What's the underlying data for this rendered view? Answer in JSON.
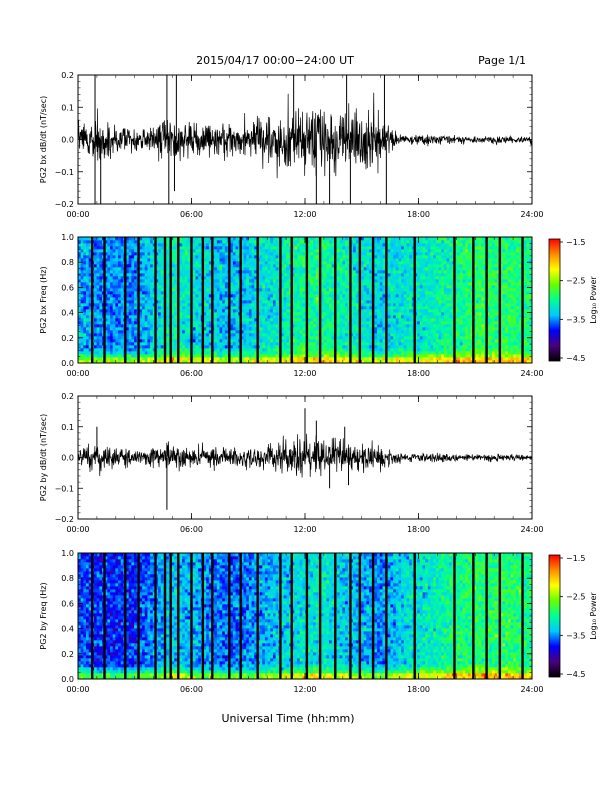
{
  "header": {
    "title": "2015/04/17  00:00−24:00 UT",
    "page": "Page 1/1"
  },
  "x_label": "Universal Time (hh:mm)",
  "x_ticks": [
    "00:00",
    "06:00",
    "12:00",
    "18:00",
    "24:00"
  ],
  "chart_data": [
    {
      "type": "line",
      "ylabel": "PG2 bx dB/dt (nT/sec)",
      "xlim": [
        0,
        24
      ],
      "ylim": [
        -0.2,
        0.2
      ],
      "yticks": [
        "0.2",
        "0.1",
        "0.0",
        "−0.1",
        "−0.2"
      ],
      "x": [
        0,
        1,
        2,
        3,
        4,
        5,
        6,
        7,
        8,
        9,
        10,
        11,
        12,
        13,
        14,
        15,
        16,
        17,
        18,
        19,
        20,
        21,
        22,
        23,
        24
      ],
      "amplitude": [
        0.05,
        0.1,
        0.05,
        0.05,
        0.05,
        0.09,
        0.07,
        0.06,
        0.06,
        0.07,
        0.1,
        0.12,
        0.14,
        0.13,
        0.11,
        0.12,
        0.1,
        0.02,
        0.02,
        0.02,
        0.015,
        0.015,
        0.015,
        0.015,
        0.015
      ],
      "spikes": [
        {
          "x": 0.9,
          "y": 0.2
        },
        {
          "x": 0.9,
          "y": -0.2
        },
        {
          "x": 1.2,
          "y": -0.2
        },
        {
          "x": 4.7,
          "y": 0.2
        },
        {
          "x": 4.8,
          "y": -0.2
        },
        {
          "x": 5.2,
          "y": 0.2
        },
        {
          "x": 5.1,
          "y": -0.16
        },
        {
          "x": 11.4,
          "y": 0.2
        },
        {
          "x": 12.6,
          "y": -0.2
        },
        {
          "x": 13.3,
          "y": -0.2
        },
        {
          "x": 14.2,
          "y": 0.2
        },
        {
          "x": 14.4,
          "y": -0.2
        },
        {
          "x": 16.2,
          "y": 0.2
        },
        {
          "x": 16.3,
          "y": -0.2
        }
      ]
    },
    {
      "type": "heatmap",
      "ylabel": "PG2 bx Freq (Hz)",
      "xlim": [
        0,
        24
      ],
      "ylim": [
        0.0,
        1.0
      ],
      "yticks": [
        "1.0",
        "0.8",
        "0.6",
        "0.4",
        "0.2",
        "0.0"
      ],
      "colorbar": {
        "label": "Log₁₀ Power",
        "ticks": [
          "−1.5",
          "−2.5",
          "−3.5",
          "−4.5"
        ],
        "range": [
          -4.5,
          -1.5
        ],
        "colors": [
          "#000000",
          "#4b007f",
          "#0000ff",
          "#00c8ff",
          "#00ff96",
          "#64ff00",
          "#ffff00",
          "#ff8c00",
          "#ff0000"
        ]
      },
      "base_power_by_hour": [
        -3.4,
        -3.5,
        -3.5,
        -3.5,
        -3.3,
        -3.1,
        -3.2,
        -3.3,
        -3.4,
        -3.3,
        -3.2,
        -3.1,
        -3.0,
        -3.0,
        -3.1,
        -3.2,
        -3.3,
        -3.2,
        -3.2,
        -3.1,
        -3.0,
        -2.9,
        -2.9,
        -2.9,
        -3.0
      ],
      "data_gaps_hours": [
        0.75,
        1.4,
        2.5,
        3.2,
        4.1,
        4.6,
        4.9,
        5.3,
        6.0,
        6.6,
        7.1,
        8.0,
        8.6,
        9.5,
        10.7,
        11.3,
        12.1,
        12.8,
        13.6,
        14.4,
        14.9,
        15.6,
        16.3,
        17.8,
        19.9,
        20.9,
        21.6,
        22.3,
        23.5
      ]
    },
    {
      "type": "line",
      "ylabel": "PG2 by dB/dt (nT/sec)",
      "xlim": [
        0,
        24
      ],
      "ylim": [
        -0.2,
        0.2
      ],
      "yticks": [
        "0.2",
        "0.1",
        "0.0",
        "−0.1",
        "−0.2"
      ],
      "x": [
        0,
        1,
        2,
        3,
        4,
        5,
        6,
        7,
        8,
        9,
        10,
        11,
        12,
        13,
        14,
        15,
        16,
        17,
        18,
        19,
        20,
        21,
        22,
        23,
        24
      ],
      "amplitude": [
        0.03,
        0.06,
        0.04,
        0.03,
        0.04,
        0.05,
        0.04,
        0.04,
        0.035,
        0.04,
        0.05,
        0.07,
        0.08,
        0.07,
        0.06,
        0.06,
        0.05,
        0.02,
        0.02,
        0.02,
        0.015,
        0.015,
        0.015,
        0.012,
        0.012
      ],
      "spikes": [
        {
          "x": 1.0,
          "y": 0.1
        },
        {
          "x": 4.7,
          "y": -0.17
        },
        {
          "x": 12.0,
          "y": 0.16
        },
        {
          "x": 12.6,
          "y": 0.12
        },
        {
          "x": 13.3,
          "y": -0.1
        },
        {
          "x": 14.1,
          "y": 0.1
        },
        {
          "x": 14.3,
          "y": -0.09
        }
      ]
    },
    {
      "type": "heatmap",
      "ylabel": "PG2 by Freq (Hz)",
      "xlim": [
        0,
        24
      ],
      "ylim": [
        0.0,
        1.0
      ],
      "yticks": [
        "1.0",
        "0.8",
        "0.6",
        "0.4",
        "0.2",
        "0.0"
      ],
      "colorbar": {
        "label": "Log₁₀ Power",
        "ticks": [
          "−1.5",
          "−2.5",
          "−3.5",
          "−4.5"
        ],
        "range": [
          -4.5,
          -1.5
        ],
        "colors": [
          "#000000",
          "#4b007f",
          "#0000ff",
          "#00c8ff",
          "#00ff96",
          "#64ff00",
          "#ffff00",
          "#ff8c00",
          "#ff0000"
        ]
      },
      "base_power_by_hour": [
        -3.6,
        -3.7,
        -3.7,
        -3.7,
        -3.5,
        -3.3,
        -3.4,
        -3.5,
        -3.6,
        -3.5,
        -3.4,
        -3.3,
        -3.2,
        -3.2,
        -3.3,
        -3.4,
        -3.5,
        -3.3,
        -3.2,
        -3.1,
        -3.0,
        -2.9,
        -2.9,
        -2.9,
        -3.0
      ],
      "data_gaps_hours": [
        0.75,
        1.4,
        2.5,
        3.2,
        4.1,
        4.6,
        4.9,
        5.3,
        6.0,
        6.6,
        7.1,
        8.0,
        8.6,
        9.5,
        10.7,
        11.3,
        12.1,
        12.8,
        13.6,
        14.4,
        14.9,
        15.6,
        16.3,
        17.8,
        19.9,
        20.9,
        21.6,
        22.3,
        23.5
      ]
    }
  ]
}
